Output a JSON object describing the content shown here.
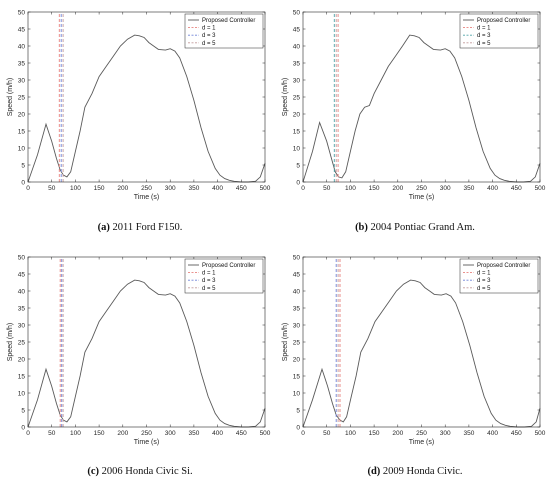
{
  "chart_data": [
    {
      "type": "line",
      "caption_tag": "(a)",
      "caption_text": "2011 Ford F150.",
      "xlabel": "Time (s)",
      "ylabel": "Speed (m/h)",
      "xlim": [
        0,
        500
      ],
      "ylim": [
        0,
        50
      ],
      "xticks": [
        0,
        50,
        100,
        150,
        200,
        250,
        300,
        350,
        400,
        450,
        500
      ],
      "yticks": [
        0,
        5,
        10,
        15,
        20,
        25,
        30,
        35,
        40,
        45,
        50
      ],
      "grid": false,
      "legend_position": "top-right",
      "series": [
        {
          "name": "Proposed Controller",
          "color": "#5a5a5a",
          "x": [
            0,
            20,
            38,
            50,
            60,
            68,
            75,
            82,
            90,
            100,
            110,
            120,
            135,
            150,
            165,
            180,
            195,
            210,
            225,
            235,
            245,
            255,
            265,
            275,
            290,
            300,
            310,
            320,
            335,
            350,
            365,
            380,
            395,
            405,
            415,
            425,
            435,
            450,
            465,
            480,
            490,
            500
          ],
          "y": [
            0,
            8,
            17,
            12,
            7,
            3.5,
            2,
            1.5,
            3,
            9,
            15,
            22,
            26,
            31,
            34,
            37,
            40,
            42,
            43.2,
            43,
            42.5,
            41,
            40,
            39,
            38.8,
            39.2,
            38.5,
            36.5,
            31,
            24,
            16,
            9,
            4,
            2,
            1,
            0.5,
            0.2,
            0,
            0,
            0.2,
            1.5,
            5.5
          ]
        },
        {
          "name": "d = 1",
          "color": "#e8827e",
          "x": [
            66,
            66
          ],
          "y": [
            0,
            50
          ]
        },
        {
          "name": "d = 3",
          "color": "#6f82d6",
          "x": [
            70,
            70
          ],
          "y": [
            0,
            50
          ]
        },
        {
          "name": "d = 5",
          "color": "#c29a9a",
          "x": [
            74,
            74
          ],
          "y": [
            0,
            50
          ]
        }
      ]
    },
    {
      "type": "line",
      "caption_tag": "(b)",
      "caption_text": "2004 Pontiac Grand Am.",
      "xlabel": "Time (s)",
      "ylabel": "Speed (m/h)",
      "xlim": [
        0,
        500
      ],
      "ylim": [
        0,
        50
      ],
      "xticks": [
        0,
        50,
        100,
        150,
        200,
        250,
        300,
        350,
        400,
        450,
        500
      ],
      "yticks": [
        0,
        5,
        10,
        15,
        20,
        25,
        30,
        35,
        40,
        45,
        50
      ],
      "grid": false,
      "legend_position": "top-right",
      "series": [
        {
          "name": "Proposed Controller",
          "color": "#5a5a5a",
          "x": [
            0,
            20,
            35,
            50,
            60,
            68,
            75,
            82,
            90,
            100,
            110,
            120,
            130,
            140,
            150,
            165,
            180,
            195,
            210,
            225,
            235,
            245,
            255,
            265,
            275,
            290,
            300,
            310,
            320,
            335,
            350,
            365,
            380,
            395,
            405,
            415,
            425,
            435,
            450,
            465,
            480,
            490,
            500
          ],
          "y": [
            0,
            9,
            17.5,
            12,
            7,
            3,
            1.5,
            1.2,
            3,
            9,
            15,
            20,
            22,
            22.5,
            26,
            30,
            34,
            37,
            40,
            43.2,
            43,
            42.5,
            41,
            40,
            39,
            38.8,
            39.2,
            38.5,
            36.5,
            31,
            24,
            16,
            9,
            4,
            2,
            1,
            0.5,
            0.2,
            0,
            0,
            0.2,
            1.5,
            5.5
          ]
        },
        {
          "name": "d = 1",
          "color": "#e8827e",
          "x": [
            74,
            74
          ],
          "y": [
            0,
            50
          ]
        },
        {
          "name": "d = 3",
          "color": "#4fa3a8",
          "x": [
            66,
            66
          ],
          "y": [
            0,
            50
          ]
        },
        {
          "name": "d = 5",
          "color": "#c29a9a",
          "x": [
            70,
            70
          ],
          "y": [
            0,
            50
          ]
        }
      ]
    },
    {
      "type": "line",
      "caption_tag": "(c)",
      "caption_text": "2006 Honda Civic Si.",
      "xlabel": "Time (s)",
      "ylabel": "Speed (m/h)",
      "xlim": [
        0,
        500
      ],
      "ylim": [
        0,
        50
      ],
      "xticks": [
        0,
        50,
        100,
        150,
        200,
        250,
        300,
        350,
        400,
        450,
        500
      ],
      "yticks": [
        0,
        5,
        10,
        15,
        20,
        25,
        30,
        35,
        40,
        45,
        50
      ],
      "grid": false,
      "legend_position": "top-right",
      "series": [
        {
          "name": "Proposed Controller",
          "color": "#5a5a5a",
          "x": [
            0,
            20,
            38,
            50,
            60,
            68,
            75,
            82,
            90,
            100,
            110,
            120,
            135,
            150,
            165,
            180,
            195,
            210,
            225,
            235,
            245,
            255,
            265,
            275,
            290,
            300,
            310,
            320,
            335,
            350,
            365,
            380,
            395,
            405,
            415,
            425,
            435,
            450,
            465,
            480,
            490,
            500
          ],
          "y": [
            0,
            8,
            17,
            12,
            7,
            3.5,
            2,
            1.5,
            3,
            9,
            15,
            22,
            26,
            31,
            34,
            37,
            40,
            42,
            43.2,
            43,
            42.5,
            41,
            40,
            39,
            38.8,
            39.2,
            38.5,
            36.5,
            31,
            24,
            16,
            9,
            4,
            2,
            1,
            0.5,
            0.2,
            0,
            0,
            0.2,
            1.5,
            5.5
          ]
        },
        {
          "name": "d = 1",
          "color": "#e8827e",
          "x": [
            68,
            68
          ],
          "y": [
            0,
            50
          ]
        },
        {
          "name": "d = 3",
          "color": "#6f82d6",
          "x": [
            71,
            71
          ],
          "y": [
            0,
            50
          ]
        },
        {
          "name": "d = 5",
          "color": "#c29a9a",
          "x": [
            74,
            74
          ],
          "y": [
            0,
            50
          ]
        }
      ]
    },
    {
      "type": "line",
      "caption_tag": "(d)",
      "caption_text": "2009 Honda Civic.",
      "xlabel": "Time (s)",
      "ylabel": "Speed (m/h)",
      "xlim": [
        0,
        500
      ],
      "ylim": [
        0,
        50
      ],
      "xticks": [
        0,
        50,
        100,
        150,
        200,
        250,
        300,
        350,
        400,
        450,
        500
      ],
      "yticks": [
        0,
        5,
        10,
        15,
        20,
        25,
        30,
        35,
        40,
        45,
        50
      ],
      "grid": false,
      "legend_position": "top-right",
      "series": [
        {
          "name": "Proposed Controller",
          "color": "#5a5a5a",
          "x": [
            0,
            20,
            40,
            52,
            62,
            70,
            78,
            85,
            92,
            102,
            112,
            122,
            137,
            152,
            167,
            182,
            197,
            212,
            227,
            237,
            247,
            257,
            267,
            277,
            292,
            302,
            312,
            322,
            337,
            352,
            367,
            382,
            397,
            407,
            417,
            427,
            437,
            452,
            467,
            482,
            492,
            500
          ],
          "y": [
            0,
            8,
            17,
            12,
            7,
            3.5,
            2,
            1.5,
            3,
            9,
            15,
            22,
            26,
            31,
            34,
            37,
            40,
            42,
            43.2,
            43,
            42.5,
            41,
            40,
            39,
            38.8,
            39.2,
            38.5,
            36.5,
            31,
            24,
            16,
            9,
            4,
            2,
            1,
            0.5,
            0.2,
            0,
            0,
            0.2,
            1.5,
            5.5
          ]
        },
        {
          "name": "d = 1",
          "color": "#e8827e",
          "x": [
            78,
            78
          ],
          "y": [
            0,
            50
          ]
        },
        {
          "name": "d = 3",
          "color": "#6f82d6",
          "x": [
            70,
            70
          ],
          "y": [
            0,
            50
          ]
        },
        {
          "name": "d = 5",
          "color": "#c29a9a",
          "x": [
            74,
            74
          ],
          "y": [
            0,
            50
          ]
        }
      ]
    }
  ]
}
